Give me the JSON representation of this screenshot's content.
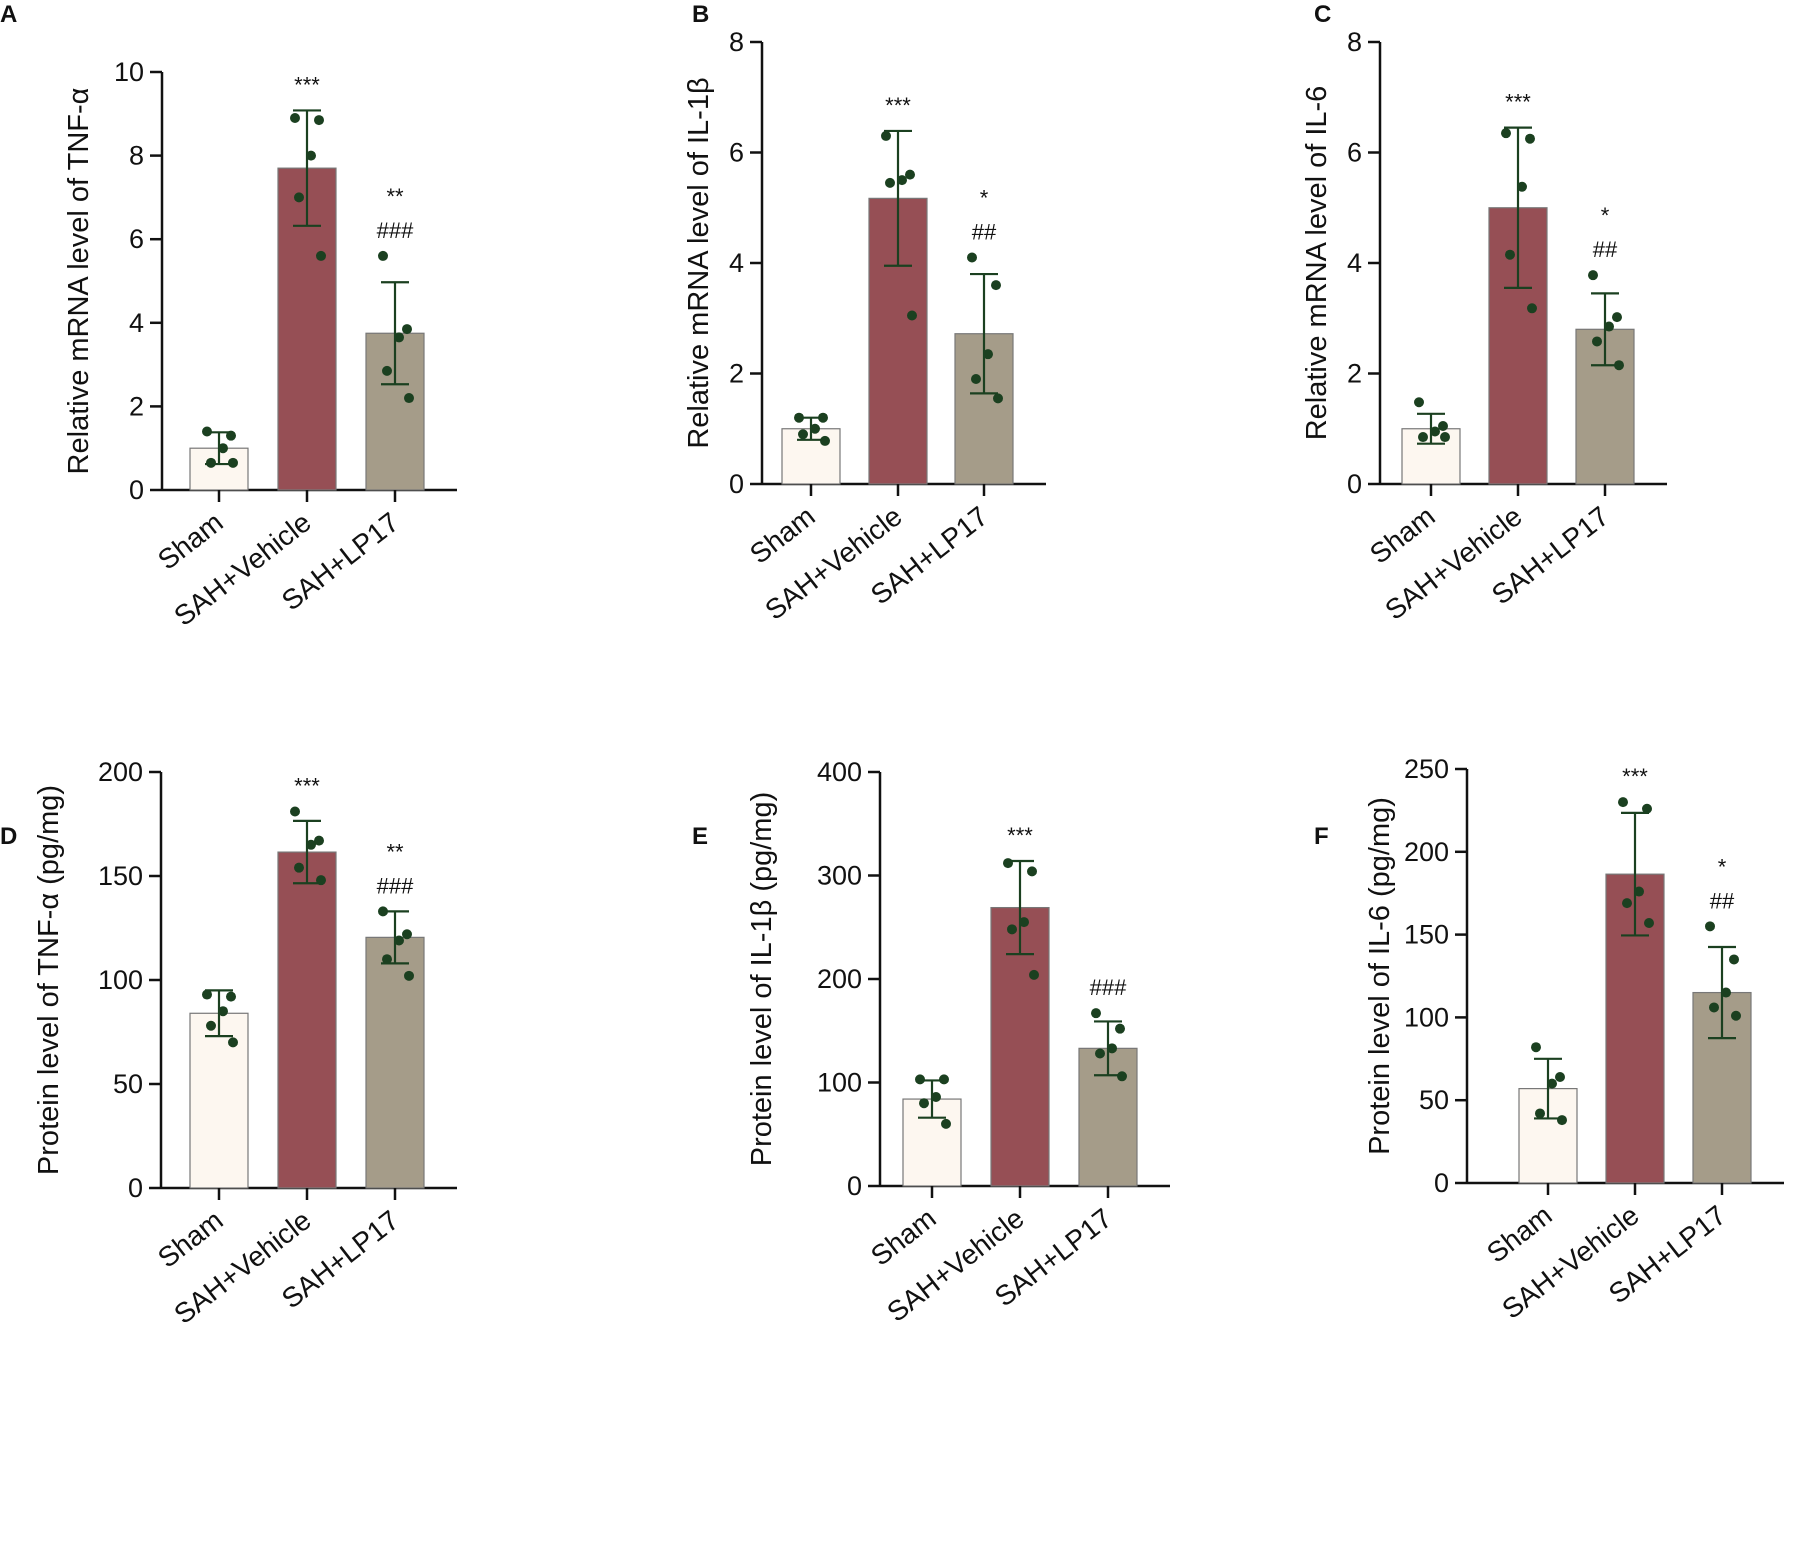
{
  "colors": {
    "sham": "#fdf7f0",
    "vehicle": "#964f55",
    "lp17": "#a59c89",
    "bar_outline": "#777777",
    "points": "#1b4020",
    "error_bars": "#1b4020",
    "axis": "#111111"
  },
  "chart_data": [
    {
      "panel": "A",
      "type": "bar",
      "ylabel": "Relative mRNA level of TNF-α",
      "ylim": [
        0,
        10
      ],
      "yticks": [
        "0",
        "2",
        "4",
        "6",
        "8",
        "10"
      ],
      "categories": [
        "Sham",
        "SAH+Vehicle",
        "SAH+LP17"
      ],
      "values": [
        1.0,
        7.7,
        3.75
      ],
      "errors": [
        0.38,
        1.38,
        1.22
      ],
      "points": [
        [
          1.4,
          1.3,
          1.0,
          0.65,
          0.65
        ],
        [
          8.9,
          8.85,
          8.0,
          7.0,
          5.6
        ],
        [
          5.6,
          3.85,
          3.65,
          2.85,
          2.2
        ]
      ],
      "annotations": [
        [
          "",
          ""
        ],
        [
          "***",
          ""
        ],
        [
          "**",
          "###"
        ]
      ]
    },
    {
      "panel": "B",
      "type": "bar",
      "ylabel": "Relative mRNA level of IL-1β",
      "ylim": [
        0,
        8
      ],
      "yticks": [
        "0",
        "2",
        "4",
        "6",
        "8"
      ],
      "categories": [
        "Sham",
        "SAH+Vehicle",
        "SAH+LP17"
      ],
      "values": [
        1.0,
        5.17,
        2.72
      ],
      "errors": [
        0.2,
        1.22,
        1.08
      ],
      "points": [
        [
          1.2,
          1.2,
          1.0,
          0.9,
          0.78
        ],
        [
          6.3,
          5.6,
          5.5,
          5.45,
          3.05
        ],
        [
          4.1,
          3.6,
          2.35,
          1.9,
          1.55
        ]
      ],
      "annotations": [
        [
          "",
          ""
        ],
        [
          "***",
          ""
        ],
        [
          "*",
          "##"
        ]
      ]
    },
    {
      "panel": "C",
      "type": "bar",
      "ylabel": "Relative mRNA level of IL-6",
      "ylim": [
        0,
        8
      ],
      "yticks": [
        "0",
        "2",
        "4",
        "6",
        "8"
      ],
      "categories": [
        "Sham",
        "SAH+Vehicle",
        "SAH+LP17"
      ],
      "values": [
        1.0,
        5.0,
        2.8
      ],
      "errors": [
        0.27,
        1.45,
        0.65
      ],
      "points": [
        [
          1.48,
          1.05,
          0.95,
          0.85,
          0.85
        ],
        [
          6.35,
          6.25,
          5.38,
          4.15,
          3.18
        ],
        [
          3.78,
          3.02,
          2.85,
          2.58,
          2.15
        ]
      ],
      "annotations": [
        [
          "",
          ""
        ],
        [
          "***",
          ""
        ],
        [
          "*",
          "##"
        ]
      ]
    },
    {
      "panel": "D",
      "type": "bar",
      "ylabel": "Protein level of TNF-α (pg/mg)",
      "ylim": [
        0,
        200
      ],
      "yticks": [
        "0",
        "50",
        "100",
        "150",
        "200"
      ],
      "categories": [
        "Sham",
        "SAH+Vehicle",
        "SAH+LP17"
      ],
      "values": [
        84,
        161.5,
        120.5
      ],
      "errors": [
        11,
        15,
        12.5
      ],
      "points": [
        [
          93,
          92,
          85,
          78,
          70
        ],
        [
          181,
          167,
          165,
          154,
          148
        ],
        [
          133,
          122,
          119,
          110,
          102
        ]
      ],
      "annotations": [
        [
          "",
          ""
        ],
        [
          "***",
          ""
        ],
        [
          "**",
          "###"
        ]
      ]
    },
    {
      "panel": "E",
      "type": "bar",
      "ylabel": "Protein level of  IL-1β (pg/mg)",
      "ylim": [
        0,
        400
      ],
      "yticks": [
        "0",
        "100",
        "200",
        "300",
        "400"
      ],
      "categories": [
        "Sham",
        "SAH+Vehicle",
        "SAH+LP17"
      ],
      "values": [
        84,
        269,
        133
      ],
      "errors": [
        18,
        45,
        26
      ],
      "points": [
        [
          103,
          103,
          86,
          80,
          60
        ],
        [
          312,
          304,
          255,
          248,
          204
        ],
        [
          167,
          152,
          133,
          128,
          106
        ]
      ],
      "annotations": [
        [
          "",
          ""
        ],
        [
          "***",
          ""
        ],
        [
          "###",
          ""
        ]
      ]
    },
    {
      "panel": "F",
      "type": "bar",
      "ylabel": "Protein level of  IL-6 (pg/mg)",
      "ylim": [
        0,
        250
      ],
      "yticks": [
        "0",
        "50",
        "100",
        "150",
        "200",
        "250"
      ],
      "categories": [
        "Sham",
        "SAH+Vehicle",
        "SAH+LP17"
      ],
      "values": [
        57,
        186.5,
        115
      ],
      "errors": [
        18,
        37,
        27.5
      ],
      "points": [
        [
          82,
          64,
          60,
          42,
          38
        ],
        [
          230,
          226,
          176,
          169,
          157
        ],
        [
          155,
          135,
          115,
          106,
          101
        ]
      ],
      "annotations": [
        [
          "",
          ""
        ],
        [
          "***",
          ""
        ],
        [
          "*",
          "##"
        ]
      ]
    }
  ]
}
